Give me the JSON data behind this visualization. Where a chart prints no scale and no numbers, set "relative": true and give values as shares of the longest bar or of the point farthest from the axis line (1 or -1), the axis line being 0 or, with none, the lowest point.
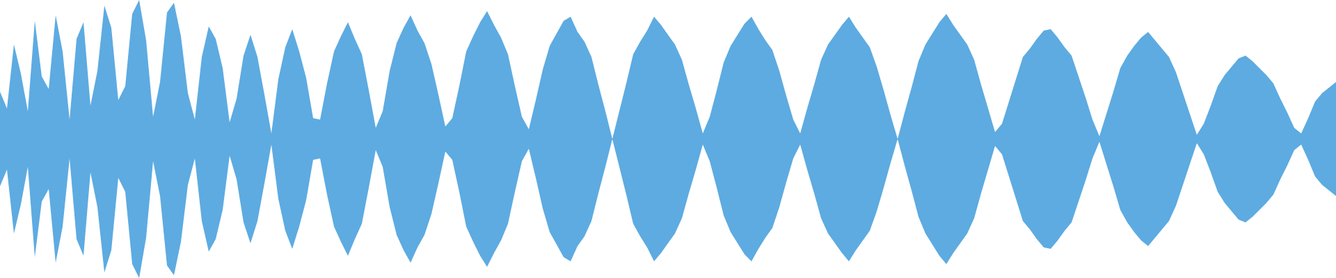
{
  "chart_data": {
    "type": "area",
    "relative": true,
    "tick_labels": false,
    "grid": false,
    "legend": false,
    "categories": [
      null,
      null,
      null,
      null,
      null,
      null,
      null,
      null,
      null,
      null,
      null,
      null,
      null,
      null,
      null,
      null,
      null,
      null,
      null,
      null,
      null,
      null,
      null,
      null,
      null,
      null,
      null,
      null,
      null,
      null,
      null,
      null,
      null,
      null,
      null,
      null,
      null,
      null,
      null,
      null,
      null,
      null,
      null,
      null,
      null,
      null,
      null,
      null,
      null,
      null,
      null,
      null,
      null,
      null,
      null,
      null,
      null,
      null,
      null,
      null,
      null,
      null,
      null,
      null,
      null,
      null,
      null,
      null,
      null,
      null,
      null,
      null,
      null,
      null,
      null,
      null,
      null,
      null,
      null,
      null,
      null,
      null,
      null,
      null,
      null,
      null,
      null,
      null,
      null,
      null,
      null,
      null,
      null,
      null,
      null,
      null,
      null,
      null,
      null,
      null,
      null,
      null,
      null,
      null,
      null,
      null,
      null,
      null,
      null,
      null,
      null,
      null,
      null,
      null,
      null,
      null,
      null,
      null,
      null,
      null,
      null,
      null,
      null,
      null,
      null,
      null,
      null,
      null,
      null,
      null,
      null,
      null,
      null,
      null,
      null,
      null,
      null,
      null,
      null,
      null,
      null,
      null,
      null,
      null,
      null,
      null,
      null,
      null,
      null,
      null,
      null,
      null,
      null,
      null,
      null,
      null,
      null,
      null,
      null,
      null,
      null,
      null,
      null,
      null,
      null,
      null,
      null,
      null,
      null,
      null,
      null,
      null,
      null,
      null,
      null,
      null,
      null,
      null,
      null,
      null,
      null,
      null,
      null,
      null,
      null,
      null,
      null,
      null,
      null,
      null,
      null,
      null,
      null
    ],
    "series": [
      {
        "color": "#5dabe1",
        "values": [
          0.34,
          0.22,
          0.68,
          0.47,
          0.2,
          0.85,
          0.45,
          0.36,
          0.89,
          0.63,
          0.14,
          0.72,
          0.84,
          0.24,
          0.49,
          0.96,
          0.8,
          0.28,
          0.38,
          0.9,
          1,
          0.71,
          0.16,
          0.41,
          0.91,
          0.98,
          0.74,
          0.33,
          0.14,
          0.59,
          0.81,
          0.72,
          0.51,
          0.12,
          0.29,
          0.6,
          0.75,
          0.59,
          0.32,
          0.04,
          0.43,
          0.66,
          0.79,
          0.63,
          0.44,
          0.15,
          0.14,
          0.4,
          0.63,
          0.74,
          0.84,
          0.72,
          0.61,
          0.35,
          0.08,
          0.2,
          0.49,
          0.69,
          0.8,
          0.89,
          0.78,
          0.69,
          0.54,
          0.32,
          0.09,
          0.15,
          0.38,
          0.63,
          0.74,
          0.84,
          0.92,
          0.82,
          0.73,
          0.61,
          0.38,
          0.16,
          0.07,
          0.28,
          0.5,
          0.67,
          0.76,
          0.85,
          0.88,
          0.77,
          0.7,
          0.59,
          0.39,
          0.2,
          0,
          0.2,
          0.4,
          0.61,
          0.7,
          0.78,
          0.88,
          0.82,
          0.75,
          0.68,
          0.57,
          0.39,
          0.22,
          0.04,
          0.16,
          0.35,
          0.55,
          0.67,
          0.75,
          0.83,
          0.88,
          0.79,
          0.71,
          0.64,
          0.49,
          0.31,
          0.14,
          0.04,
          0.22,
          0.39,
          0.57,
          0.68,
          0.75,
          0.82,
          0.88,
          0.8,
          0.73,
          0.66,
          0.52,
          0.35,
          0.17,
          0,
          0.19,
          0.37,
          0.56,
          0.68,
          0.76,
          0.84,
          0.9,
          0.82,
          0.75,
          0.68,
          0.57,
          0.39,
          0.22,
          0.05,
          0.11,
          0.27,
          0.43,
          0.59,
          0.65,
          0.72,
          0.78,
          0.79,
          0.73,
          0.66,
          0.6,
          0.45,
          0.3,
          0.14,
          0.02,
          0.18,
          0.34,
          0.51,
          0.6,
          0.67,
          0.73,
          0.77,
          0.71,
          0.65,
          0.59,
          0.48,
          0.33,
          0.18,
          0.03,
          0.11,
          0.24,
          0.38,
          0.46,
          0.52,
          0.58,
          0.6,
          0.56,
          0.51,
          0.46,
          0.4,
          0.29,
          0.19,
          0.08,
          0.04,
          0.15,
          0.27,
          0.33,
          0.37,
          0.41
        ]
      },
      {
        "color": "#5dabe1",
        "values": [
          -0.34,
          -0.22,
          -0.68,
          -0.47,
          -0.2,
          -0.85,
          -0.45,
          -0.36,
          -0.89,
          -0.63,
          -0.14,
          -0.72,
          -0.84,
          -0.24,
          -0.49,
          -0.96,
          -0.8,
          -0.28,
          -0.38,
          -0.9,
          -1,
          -0.71,
          -0.16,
          -0.41,
          -0.91,
          -0.98,
          -0.74,
          -0.33,
          -0.14,
          -0.59,
          -0.81,
          -0.72,
          -0.51,
          -0.12,
          -0.29,
          -0.6,
          -0.75,
          -0.59,
          -0.32,
          -0.04,
          -0.43,
          -0.66,
          -0.79,
          -0.63,
          -0.44,
          -0.15,
          -0.14,
          -0.4,
          -0.63,
          -0.74,
          -0.84,
          -0.72,
          -0.61,
          -0.35,
          -0.08,
          -0.2,
          -0.49,
          -0.69,
          -0.8,
          -0.89,
          -0.78,
          -0.69,
          -0.54,
          -0.32,
          -0.09,
          -0.15,
          -0.38,
          -0.63,
          -0.74,
          -0.84,
          -0.92,
          -0.82,
          -0.73,
          -0.61,
          -0.38,
          -0.16,
          -0.07,
          -0.28,
          -0.5,
          -0.67,
          -0.76,
          -0.85,
          -0.88,
          -0.77,
          -0.7,
          -0.59,
          -0.39,
          -0.2,
          0,
          -0.2,
          -0.4,
          -0.61,
          -0.7,
          -0.78,
          -0.88,
          -0.82,
          -0.75,
          -0.68,
          -0.57,
          -0.39,
          -0.22,
          -0.04,
          -0.16,
          -0.35,
          -0.55,
          -0.67,
          -0.75,
          -0.83,
          -0.88,
          -0.79,
          -0.71,
          -0.64,
          -0.49,
          -0.31,
          -0.14,
          -0.04,
          -0.22,
          -0.39,
          -0.57,
          -0.68,
          -0.75,
          -0.82,
          -0.88,
          -0.8,
          -0.73,
          -0.66,
          -0.52,
          -0.35,
          -0.17,
          0,
          -0.19,
          -0.37,
          -0.56,
          -0.68,
          -0.76,
          -0.84,
          -0.9,
          -0.82,
          -0.75,
          -0.68,
          -0.57,
          -0.39,
          -0.22,
          -0.05,
          -0.11,
          -0.27,
          -0.43,
          -0.59,
          -0.65,
          -0.72,
          -0.78,
          -0.79,
          -0.73,
          -0.66,
          -0.6,
          -0.45,
          -0.3,
          -0.14,
          -0.02,
          -0.18,
          -0.34,
          -0.51,
          -0.6,
          -0.67,
          -0.73,
          -0.77,
          -0.71,
          -0.65,
          -0.59,
          -0.48,
          -0.33,
          -0.18,
          -0.03,
          -0.11,
          -0.24,
          -0.38,
          -0.46,
          -0.52,
          -0.58,
          -0.6,
          -0.56,
          -0.51,
          -0.46,
          -0.4,
          -0.29,
          -0.19,
          -0.08,
          -0.04,
          -0.15,
          -0.27,
          -0.33,
          -0.37,
          -0.41
        ]
      }
    ]
  }
}
